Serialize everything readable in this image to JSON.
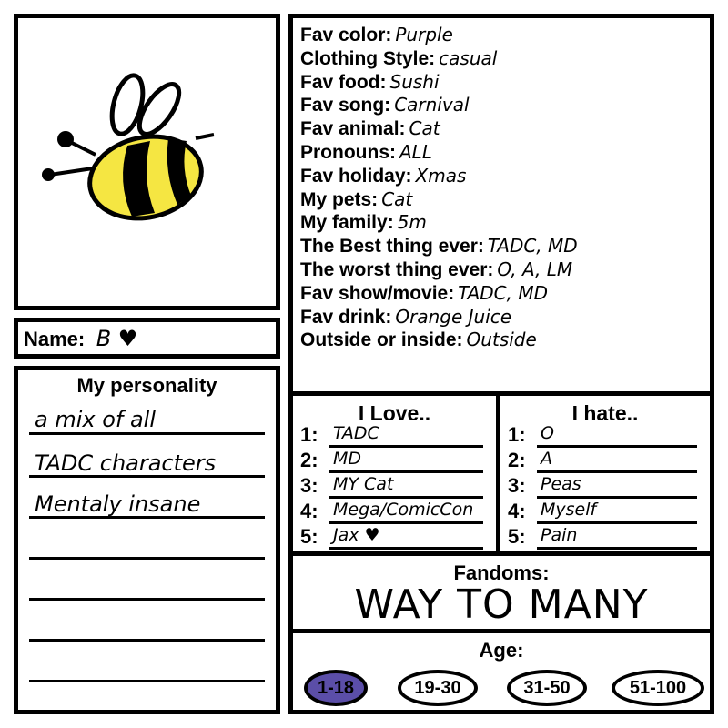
{
  "name": {
    "label": "Name:",
    "value": "B ♥"
  },
  "personality": {
    "title": "My personality",
    "lines": [
      "a mix of all",
      "TADC characters",
      "Mentaly insane"
    ]
  },
  "facts": [
    {
      "label": "Fav color:",
      "value": "Purple"
    },
    {
      "label": "Clothing Style:",
      "value": "casual"
    },
    {
      "label": "Fav food:",
      "value": "Sushi"
    },
    {
      "label": "Fav song:",
      "value": "Carnival"
    },
    {
      "label": "Fav animal:",
      "value": "Cat"
    },
    {
      "label": "Pronouns:",
      "value": "ALL"
    },
    {
      "label": "Fav holiday:",
      "value": "Xmas"
    },
    {
      "label": "My pets:",
      "value": "Cat"
    },
    {
      "label": "My family:",
      "value": "5m"
    },
    {
      "label": "The Best thing ever:",
      "value": "TADC, MD"
    },
    {
      "label": "The worst thing ever:",
      "value": "O, A, LM"
    },
    {
      "label": "Fav show/movie:",
      "value": "TADC, MD"
    },
    {
      "label": "Fav drink:",
      "value": "Orange Juice"
    },
    {
      "label": "Outside or inside:",
      "value": "Outside"
    }
  ],
  "love": {
    "title": "I Love..",
    "items": [
      {
        "n": "1:",
        "v": "TADC"
      },
      {
        "n": "2:",
        "v": "MD"
      },
      {
        "n": "3:",
        "v": "MY Cat"
      },
      {
        "n": "4:",
        "v": "Mega/ComicCon"
      },
      {
        "n": "5:",
        "v": "Jax ♥"
      }
    ]
  },
  "hate": {
    "title": "I hate..",
    "items": [
      {
        "n": "1:",
        "v": "O"
      },
      {
        "n": "2:",
        "v": "A"
      },
      {
        "n": "3:",
        "v": "Peas"
      },
      {
        "n": "4:",
        "v": "Myself"
      },
      {
        "n": "5:",
        "v": "Pain"
      }
    ]
  },
  "fandoms": {
    "title": "Fandoms:",
    "value": "WAY TO MANY"
  },
  "age": {
    "title": "Age:",
    "options": [
      "1-18",
      "19-30",
      "31-50",
      "51-100"
    ],
    "selected": "1-18",
    "selected_color": "#5b4ea8"
  },
  "icons": {
    "picture": "bee-drawing"
  }
}
